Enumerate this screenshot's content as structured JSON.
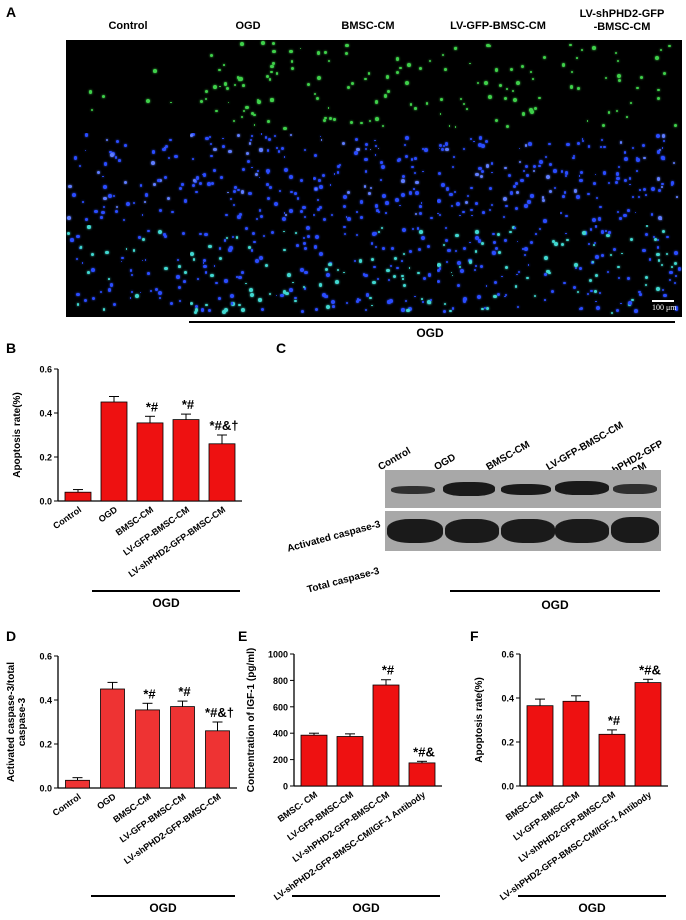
{
  "panel_letters": [
    "A",
    "B",
    "C",
    "D",
    "E",
    "F"
  ],
  "panelA": {
    "headers": [
      "Control",
      "OGD",
      "BMSC-CM",
      "LV-GFP-BMSC-CM",
      "LV-shPHD2-GFP\n-BMSC-CM"
    ],
    "scale_bar": "100 μm",
    "group_label": "OGD"
  },
  "panelC": {
    "lanes": [
      "Control",
      "OGD",
      "BMSC-CM",
      "LV-GFP-BMSC-CM",
      "LV-shPHD2-GFP\n-BMSC-CM"
    ],
    "rows": [
      "Activated caspase-3",
      "Total caspase-3"
    ],
    "group_label": "OGD"
  },
  "chart_data": [
    {
      "panel": "B",
      "type": "bar",
      "categories": [
        "Control",
        "OGD",
        "BMSC-CM",
        "LV-GFP-BMSC-CM",
        "LV-shPHD2-GFP-BMSC-CM"
      ],
      "values": [
        0.04,
        0.45,
        0.355,
        0.37,
        0.26
      ],
      "errors": [
        0.012,
        0.025,
        0.03,
        0.025,
        0.04
      ],
      "annotations": [
        "",
        "",
        "*#",
        "*#",
        "*#&†"
      ],
      "ylabel": "Apoptosis rate(%)",
      "ylim": [
        0,
        0.6
      ],
      "yticks": [
        "0.0",
        "0.2",
        "0.4",
        "0.6"
      ],
      "group_label": "OGD",
      "color": "#ee1111"
    },
    {
      "panel": "D",
      "type": "bar",
      "categories": [
        "Control",
        "OGD",
        "BMSC-CM",
        "LV-GFP-BMSC-CM",
        "LV-shPHD2-GFP-BMSC-CM"
      ],
      "values": [
        0.035,
        0.45,
        0.355,
        0.37,
        0.26
      ],
      "errors": [
        0.012,
        0.03,
        0.03,
        0.025,
        0.04
      ],
      "annotations": [
        "",
        "",
        "*#",
        "*#",
        "*#&†"
      ],
      "ylabel": "Activated caspase-3/total caspase-3",
      "ylabel_lines": [
        "Activated caspase-3/total",
        "caspase-3"
      ],
      "ylim": [
        0,
        0.6
      ],
      "yticks": [
        "0.0",
        "0.2",
        "0.4",
        "0.6"
      ],
      "group_label": "OGD",
      "color": "#ee3333"
    },
    {
      "panel": "E",
      "type": "bar",
      "categories": [
        "BMSC- CM",
        "LV-GFP-BMSC-CM",
        "LV-shPHD2-GFP-BMSC-CM",
        "LV-shPHD2-GFP-BMSC-CM/IGF-1 Antibody"
      ],
      "values": [
        385,
        375,
        765,
        175
      ],
      "errors": [
        15,
        20,
        40,
        12
      ],
      "annotations": [
        "",
        "",
        "*#",
        "*#&"
      ],
      "ylabel": "Concentration of IGF-1 (pg/ml)",
      "ylim": [
        0,
        1000
      ],
      "yticks": [
        "0",
        "200",
        "400",
        "600",
        "800",
        "1000"
      ],
      "group_label": "OGD",
      "color": "#ee1111"
    },
    {
      "panel": "F",
      "type": "bar",
      "categories": [
        "BMSC-CM",
        "LV-GFP-BMSC-CM",
        "LV-shPHD2-GFP-BMSC-CM",
        "LV-shPHD2-GFP-BMSC-CM/IGF-1 Antibody"
      ],
      "values": [
        0.365,
        0.385,
        0.235,
        0.47
      ],
      "errors": [
        0.03,
        0.025,
        0.02,
        0.015
      ],
      "annotations": [
        "",
        "",
        "*#",
        "*#&"
      ],
      "ylabel": "Apoptosis rate(%)",
      "ylim": [
        0,
        0.6
      ],
      "yticks": [
        "0.0",
        "0.2",
        "0.4",
        "0.6"
      ],
      "group_label": "OGD",
      "color": "#ee1111"
    }
  ]
}
